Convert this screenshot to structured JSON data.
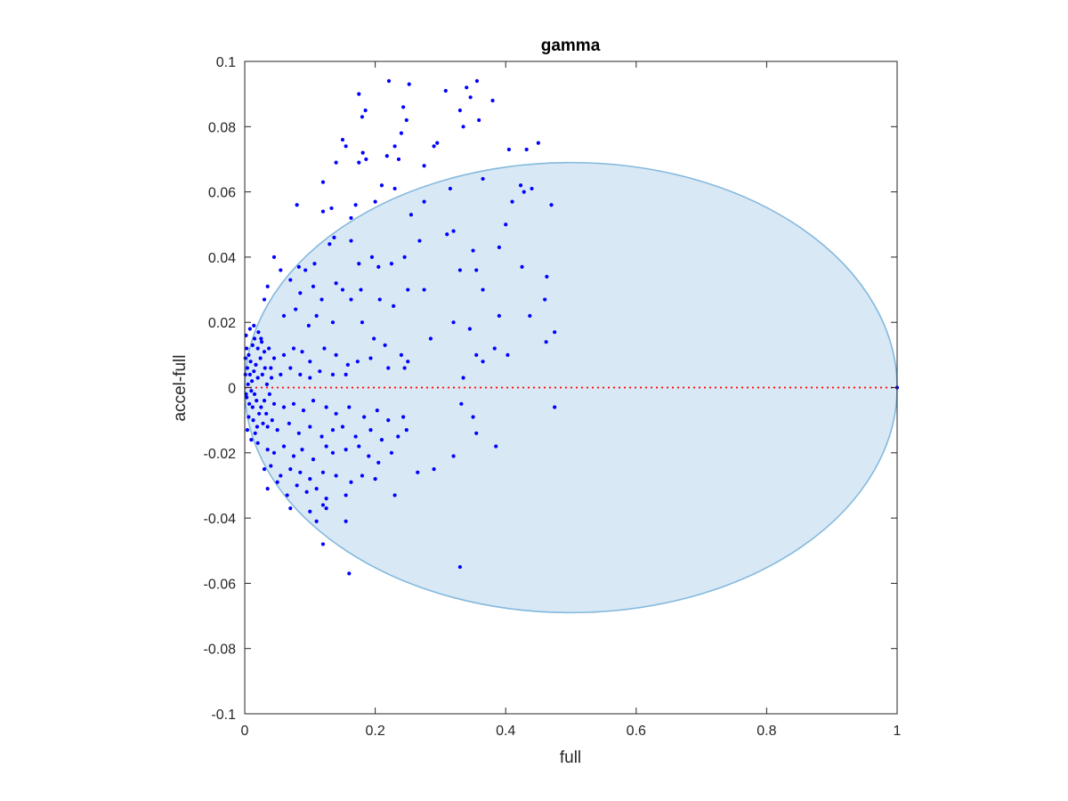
{
  "chart_data": {
    "type": "scatter",
    "title": "gamma",
    "xlabel": "full",
    "ylabel": "accel-full",
    "xlim": [
      0,
      1
    ],
    "ylim": [
      -0.1,
      0.1
    ],
    "x_ticks": [
      "0",
      "0.2",
      "0.4",
      "0.6",
      "0.8",
      "1"
    ],
    "y_ticks": [
      "0.1",
      "0.08",
      "0.06",
      "0.04",
      "0.02",
      "0",
      "-0.02",
      "-0.04",
      "-0.06",
      "-0.08",
      "-0.1"
    ],
    "grid": false,
    "colors": {
      "points": "#0000ff",
      "region_fill": "#d9e8f5",
      "region_edge": "#84b9dd",
      "reference_line": "#ff0000",
      "axes": "#262626"
    },
    "region": {
      "shape": "ellipse",
      "x_range": [
        0,
        1
      ],
      "y_range": [
        -0.069,
        0.069
      ]
    },
    "reference_line": {
      "y": 0,
      "x_range": [
        0,
        1
      ],
      "style": "dotted"
    },
    "series": [
      {
        "points": [
          [
            0.221,
            0.094
          ],
          [
            0.252,
            0.093
          ],
          [
            0.308,
            0.091
          ],
          [
            0.34,
            0.092
          ],
          [
            0.356,
            0.094
          ],
          [
            0.346,
            0.089
          ],
          [
            0.38,
            0.088
          ],
          [
            0.175,
            0.09
          ],
          [
            0.243,
            0.086
          ],
          [
            0.185,
            0.085
          ],
          [
            0.18,
            0.083
          ],
          [
            0.248,
            0.082
          ],
          [
            0.33,
            0.085
          ],
          [
            0.359,
            0.082
          ],
          [
            0.335,
            0.08
          ],
          [
            0.24,
            0.078
          ],
          [
            0.15,
            0.076
          ],
          [
            0.155,
            0.074
          ],
          [
            0.23,
            0.074
          ],
          [
            0.29,
            0.074
          ],
          [
            0.295,
            0.075
          ],
          [
            0.45,
            0.075
          ],
          [
            0.405,
            0.073
          ],
          [
            0.432,
            0.073
          ],
          [
            0.181,
            0.072
          ],
          [
            0.186,
            0.07
          ],
          [
            0.218,
            0.071
          ],
          [
            0.236,
            0.07
          ],
          [
            0.175,
            0.069
          ],
          [
            0.14,
            0.069
          ],
          [
            0.275,
            0.068
          ],
          [
            0.12,
            0.063
          ],
          [
            0.21,
            0.062
          ],
          [
            0.23,
            0.061
          ],
          [
            0.315,
            0.061
          ],
          [
            0.365,
            0.064
          ],
          [
            0.423,
            0.062
          ],
          [
            0.428,
            0.06
          ],
          [
            0.44,
            0.061
          ],
          [
            0.08,
            0.056
          ],
          [
            0.133,
            0.055
          ],
          [
            0.17,
            0.056
          ],
          [
            0.2,
            0.057
          ],
          [
            0.275,
            0.057
          ],
          [
            0.41,
            0.057
          ],
          [
            0.47,
            0.056
          ],
          [
            0.12,
            0.054
          ],
          [
            0.163,
            0.052
          ],
          [
            0.255,
            0.053
          ],
          [
            0.4,
            0.05
          ],
          [
            0.045,
            0.04
          ],
          [
            0.055,
            0.036
          ],
          [
            0.083,
            0.037
          ],
          [
            0.093,
            0.036
          ],
          [
            0.107,
            0.038
          ],
          [
            0.13,
            0.044
          ],
          [
            0.137,
            0.046
          ],
          [
            0.163,
            0.045
          ],
          [
            0.175,
            0.038
          ],
          [
            0.195,
            0.04
          ],
          [
            0.205,
            0.037
          ],
          [
            0.225,
            0.038
          ],
          [
            0.245,
            0.04
          ],
          [
            0.268,
            0.045
          ],
          [
            0.31,
            0.047
          ],
          [
            0.32,
            0.048
          ],
          [
            0.35,
            0.042
          ],
          [
            0.39,
            0.043
          ],
          [
            0.425,
            0.037
          ],
          [
            0.07,
            0.033
          ],
          [
            0.085,
            0.029
          ],
          [
            0.105,
            0.031
          ],
          [
            0.118,
            0.027
          ],
          [
            0.14,
            0.032
          ],
          [
            0.15,
            0.03
          ],
          [
            0.163,
            0.027
          ],
          [
            0.178,
            0.03
          ],
          [
            0.207,
            0.027
          ],
          [
            0.228,
            0.025
          ],
          [
            0.25,
            0.03
          ],
          [
            0.275,
            0.03
          ],
          [
            0.33,
            0.036
          ],
          [
            0.355,
            0.036
          ],
          [
            0.365,
            0.03
          ],
          [
            0.463,
            0.034
          ],
          [
            0.46,
            0.027
          ],
          [
            0.437,
            0.022
          ],
          [
            0.475,
            0.017
          ],
          [
            0.035,
            0.031
          ],
          [
            0.03,
            0.027
          ],
          [
            0.06,
            0.022
          ],
          [
            0.078,
            0.024
          ],
          [
            0.098,
            0.019
          ],
          [
            0.11,
            0.022
          ],
          [
            0.135,
            0.02
          ],
          [
            0.18,
            0.02
          ],
          [
            0.198,
            0.015
          ],
          [
            0.215,
            0.013
          ],
          [
            0.24,
            0.01
          ],
          [
            0.285,
            0.015
          ],
          [
            0.32,
            0.02
          ],
          [
            0.345,
            0.018
          ],
          [
            0.39,
            0.022
          ],
          [
            0.383,
            0.012
          ],
          [
            0.403,
            0.01
          ],
          [
            0.355,
            0.01
          ],
          [
            0.365,
            0.008
          ],
          [
            0.462,
            0.014
          ],
          [
            0.025,
            0.015
          ],
          [
            0.03,
            0.011
          ],
          [
            0.045,
            0.009
          ],
          [
            0.06,
            0.01
          ],
          [
            0.075,
            0.012
          ],
          [
            0.088,
            0.011
          ],
          [
            0.1,
            0.008
          ],
          [
            0.122,
            0.012
          ],
          [
            0.14,
            0.01
          ],
          [
            0.158,
            0.007
          ],
          [
            0.173,
            0.008
          ],
          [
            0.193,
            0.009
          ],
          [
            0.22,
            0.006
          ],
          [
            0.245,
            0.006
          ],
          [
            0.25,
            0.008
          ],
          [
            0.335,
            0.003
          ],
          [
            0.04,
            0.006
          ],
          [
            0.055,
            0.004
          ],
          [
            0.07,
            0.006
          ],
          [
            0.085,
            0.004
          ],
          [
            0.1,
            0.003
          ],
          [
            0.115,
            0.005
          ],
          [
            0.135,
            0.004
          ],
          [
            0.155,
            0.004
          ],
          [
            0.03,
            -0.004
          ],
          [
            0.045,
            -0.005
          ],
          [
            0.06,
            -0.006
          ],
          [
            0.075,
            -0.005
          ],
          [
            0.09,
            -0.007
          ],
          [
            0.105,
            -0.004
          ],
          [
            0.125,
            -0.006
          ],
          [
            0.14,
            -0.008
          ],
          [
            0.16,
            -0.006
          ],
          [
            0.183,
            -0.009
          ],
          [
            0.203,
            -0.007
          ],
          [
            0.22,
            -0.01
          ],
          [
            0.243,
            -0.009
          ],
          [
            0.332,
            -0.005
          ],
          [
            0.35,
            -0.009
          ],
          [
            0.475,
            -0.006
          ],
          [
            0.035,
            -0.012
          ],
          [
            0.05,
            -0.013
          ],
          [
            0.068,
            -0.011
          ],
          [
            0.083,
            -0.014
          ],
          [
            0.1,
            -0.012
          ],
          [
            0.118,
            -0.015
          ],
          [
            0.135,
            -0.013
          ],
          [
            0.15,
            -0.012
          ],
          [
            0.17,
            -0.015
          ],
          [
            0.193,
            -0.013
          ],
          [
            0.21,
            -0.016
          ],
          [
            0.235,
            -0.015
          ],
          [
            0.248,
            -0.013
          ],
          [
            0.355,
            -0.014
          ],
          [
            0.385,
            -0.018
          ],
          [
            0.02,
            -0.017
          ],
          [
            0.035,
            -0.019
          ],
          [
            0.045,
            -0.02
          ],
          [
            0.06,
            -0.018
          ],
          [
            0.075,
            -0.021
          ],
          [
            0.088,
            -0.019
          ],
          [
            0.105,
            -0.022
          ],
          [
            0.125,
            -0.018
          ],
          [
            0.135,
            -0.02
          ],
          [
            0.155,
            -0.019
          ],
          [
            0.175,
            -0.018
          ],
          [
            0.19,
            -0.021
          ],
          [
            0.205,
            -0.023
          ],
          [
            0.225,
            -0.02
          ],
          [
            0.32,
            -0.021
          ],
          [
            0.03,
            -0.025
          ],
          [
            0.04,
            -0.024
          ],
          [
            0.055,
            -0.027
          ],
          [
            0.07,
            -0.025
          ],
          [
            0.085,
            -0.026
          ],
          [
            0.1,
            -0.028
          ],
          [
            0.12,
            -0.026
          ],
          [
            0.14,
            -0.027
          ],
          [
            0.163,
            -0.029
          ],
          [
            0.18,
            -0.027
          ],
          [
            0.2,
            -0.028
          ],
          [
            0.265,
            -0.026
          ],
          [
            0.29,
            -0.025
          ],
          [
            0.035,
            -0.031
          ],
          [
            0.05,
            -0.029
          ],
          [
            0.065,
            -0.033
          ],
          [
            0.08,
            -0.03
          ],
          [
            0.095,
            -0.032
          ],
          [
            0.11,
            -0.031
          ],
          [
            0.125,
            -0.034
          ],
          [
            0.155,
            -0.033
          ],
          [
            0.23,
            -0.033
          ],
          [
            0.07,
            -0.037
          ],
          [
            0.1,
            -0.038
          ],
          [
            0.11,
            -0.041
          ],
          [
            0.12,
            -0.036
          ],
          [
            0.125,
            -0.037
          ],
          [
            0.155,
            -0.041
          ],
          [
            0.12,
            -0.048
          ],
          [
            0.16,
            -0.057
          ],
          [
            0.33,
            -0.055
          ],
          [
            0.003,
            0.012
          ],
          [
            0.006,
            0.01
          ],
          [
            0.009,
            0.008
          ],
          [
            0.012,
            0.013
          ],
          [
            0.004,
            0.006
          ],
          [
            0.008,
            0.004
          ],
          [
            0.011,
            0.002
          ],
          [
            0.014,
            0.005
          ],
          [
            0.017,
            0.007
          ],
          [
            0.02,
            0.003
          ],
          [
            0.005,
            0.001
          ],
          [
            0.01,
            -0.001
          ],
          [
            0.015,
            -0.002
          ],
          [
            0.003,
            -0.003
          ],
          [
            0.007,
            -0.005
          ],
          [
            0.012,
            -0.006
          ],
          [
            0.018,
            -0.004
          ],
          [
            0.022,
            -0.008
          ],
          [
            0.006,
            -0.009
          ],
          [
            0.013,
            -0.01
          ],
          [
            0.025,
            -0.006
          ],
          [
            0.028,
            -0.011
          ],
          [
            0.016,
            -0.014
          ],
          [
            0.002,
            0.016
          ],
          [
            0.008,
            0.018
          ],
          [
            0.015,
            0.015
          ],
          [
            0.02,
            0.012
          ],
          [
            0.024,
            0.009
          ],
          [
            0.027,
            0.004
          ],
          [
            0.004,
            -0.013
          ],
          [
            0.01,
            -0.016
          ],
          [
            0.019,
            -0.012
          ],
          [
            0.001,
            0.004
          ],
          [
            0.002,
            -0.002
          ],
          [
            0.001,
            0.009
          ],
          [
            0.014,
            0.019
          ],
          [
            0.021,
            0.017
          ],
          [
            0.026,
            0.014
          ],
          [
            0.031,
            0.006
          ],
          [
            0.034,
            0.001
          ],
          [
            0.038,
            -0.002
          ],
          [
            0.041,
            0.003
          ],
          [
            0.033,
            -0.008
          ],
          [
            0.037,
            0.012
          ],
          [
            0.042,
            -0.01
          ],
          [
            1.0,
            0.0
          ]
        ]
      }
    ]
  }
}
